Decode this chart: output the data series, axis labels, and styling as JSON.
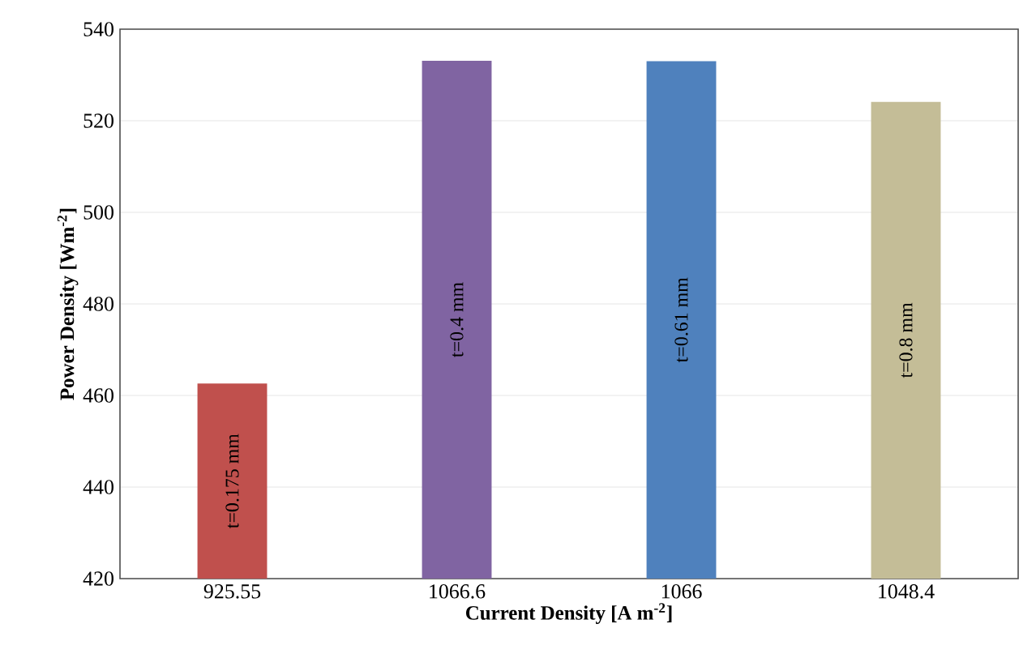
{
  "chart_data": {
    "type": "bar",
    "xlabel": "Current Density [A m$^{-2}$]",
    "ylabel": "Power Density [Wm$^{-2}$]",
    "categories": [
      "925.55",
      "1066.6",
      "1066",
      "1048.4"
    ],
    "values": [
      462.6,
      533.1,
      533.0,
      524.1
    ],
    "colors": [
      "#c0504d",
      "#8064a2",
      "#4f81bd",
      "#c4bd97"
    ],
    "ylim": [
      420,
      540
    ],
    "yticks": [
      420,
      440,
      460,
      480,
      500,
      520,
      540
    ],
    "grid": "y",
    "annotations": [
      "t=0.175 mm",
      "t=0.4 mm",
      "t=0.61 mm",
      "t=0.8 mm"
    ]
  }
}
